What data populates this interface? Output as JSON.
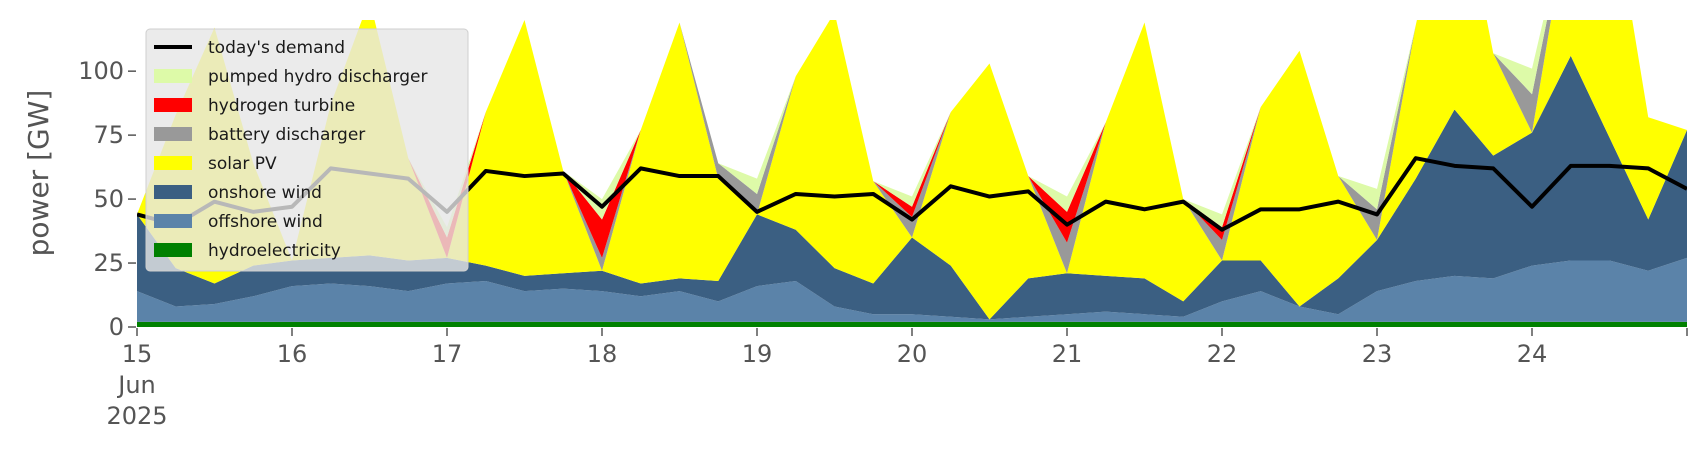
{
  "chart_data": {
    "type": "area",
    "title": "",
    "ylabel": "power [GW]",
    "ylim": [
      0,
      120
    ],
    "yticks": [
      0,
      25,
      50,
      75,
      100
    ],
    "xlim": [
      0,
      10
    ],
    "xticks": [
      {
        "x": 0,
        "label": "15",
        "sub": [
          "Jun",
          "2025"
        ]
      },
      {
        "x": 1,
        "label": "16"
      },
      {
        "x": 2,
        "label": "17"
      },
      {
        "x": 3,
        "label": "18"
      },
      {
        "x": 4,
        "label": "19"
      },
      {
        "x": 5,
        "label": "20"
      },
      {
        "x": 6,
        "label": "21"
      },
      {
        "x": 7,
        "label": "22"
      },
      {
        "x": 8,
        "label": "23"
      },
      {
        "x": 9,
        "label": "24"
      },
      {
        "x": 10,
        "label": ""
      }
    ],
    "grid": false,
    "legend_position": "top-left",
    "stack_order": [
      "hydroelectricity",
      "offshore wind",
      "onshore wind",
      "solar PV",
      "battery discharger",
      "hydrogen turbine",
      "pumped hydro discharger"
    ],
    "x": [
      0.0,
      0.25,
      0.5,
      0.75,
      1.0,
      1.25,
      1.5,
      1.75,
      2.0,
      2.25,
      2.5,
      2.75,
      3.0,
      3.25,
      3.5,
      3.75,
      4.0,
      4.25,
      4.5,
      4.75,
      5.0,
      5.25,
      5.5,
      5.75,
      6.0,
      6.25,
      6.5,
      6.75,
      7.0,
      7.25,
      7.5,
      7.75,
      8.0,
      8.25,
      8.5,
      8.75,
      9.0,
      9.25,
      9.5,
      9.75,
      10.0
    ],
    "series": [
      {
        "name": "hydroelectricity",
        "color": "#008000",
        "values": [
          2,
          2,
          2,
          2,
          2,
          2,
          2,
          2,
          2,
          2,
          2,
          2,
          2,
          2,
          2,
          2,
          2,
          2,
          2,
          2,
          2,
          2,
          2,
          2,
          2,
          2,
          2,
          2,
          2,
          2,
          2,
          2,
          2,
          2,
          2,
          2,
          2,
          2,
          2,
          2,
          2
        ]
      },
      {
        "name": "offshore wind",
        "color": "#5b83a9",
        "values": [
          12,
          6,
          7,
          10,
          14,
          15,
          14,
          12,
          15,
          16,
          12,
          13,
          12,
          10,
          12,
          8,
          14,
          16,
          6,
          3,
          3,
          2,
          1,
          2,
          3,
          4,
          3,
          2,
          8,
          12,
          6,
          3,
          12,
          16,
          18,
          17,
          22,
          24,
          24,
          20,
          25
        ]
      },
      {
        "name": "onshore wind",
        "color": "#3b5f82",
        "values": [
          30,
          15,
          8,
          12,
          10,
          10,
          12,
          12,
          10,
          6,
          6,
          6,
          8,
          5,
          5,
          8,
          28,
          20,
          15,
          12,
          30,
          20,
          0,
          15,
          16,
          14,
          14,
          6,
          16,
          12,
          0,
          14,
          20,
          40,
          65,
          48,
          52,
          80,
          48,
          20,
          50
        ]
      },
      {
        "name": "solar PV",
        "color": "#ffff00",
        "values": [
          0,
          60,
          100,
          40,
          0,
          60,
          100,
          40,
          0,
          60,
          100,
          40,
          0,
          60,
          100,
          40,
          0,
          60,
          100,
          40,
          0,
          60,
          100,
          40,
          0,
          60,
          100,
          40,
          0,
          60,
          100,
          40,
          0,
          60,
          100,
          40,
          0,
          60,
          100,
          40,
          0
        ]
      },
      {
        "name": "battery discharger",
        "color": "#999999",
        "values": [
          0,
          0,
          0,
          0,
          0,
          0,
          0,
          0,
          0,
          0,
          0,
          0,
          5,
          0,
          0,
          6,
          8,
          0,
          0,
          0,
          8,
          0,
          0,
          0,
          12,
          0,
          0,
          0,
          8,
          0,
          0,
          0,
          12,
          0,
          0,
          0,
          15,
          0,
          0,
          0,
          0
        ]
      },
      {
        "name": "hydrogen turbine",
        "color": "#ff0000",
        "values": [
          0,
          0,
          0,
          0,
          0,
          0,
          0,
          0,
          8,
          0,
          0,
          0,
          15,
          0,
          0,
          0,
          0,
          0,
          0,
          0,
          4,
          0,
          0,
          0,
          12,
          0,
          0,
          0,
          5,
          0,
          0,
          0,
          0,
          0,
          0,
          0,
          0,
          0,
          0,
          0,
          0
        ]
      },
      {
        "name": "pumped hydro discharger",
        "color": "#ddfaa8",
        "values": [
          0,
          0,
          0,
          0,
          0,
          0,
          0,
          0,
          4,
          0,
          0,
          0,
          8,
          0,
          0,
          0,
          6,
          0,
          0,
          0,
          4,
          0,
          0,
          0,
          6,
          0,
          0,
          0,
          5,
          0,
          0,
          0,
          8,
          0,
          0,
          0,
          10,
          0,
          0,
          0,
          0
        ]
      }
    ],
    "demand": {
      "name": "today's demand",
      "color": "#000000",
      "values": [
        44,
        40,
        49,
        45,
        47,
        62,
        60,
        58,
        45,
        61,
        59,
        60,
        47,
        62,
        59,
        59,
        45,
        52,
        51,
        52,
        42,
        55,
        51,
        53,
        40,
        49,
        46,
        49,
        38,
        46,
        46,
        49,
        44,
        66,
        63,
        62,
        47,
        63,
        63,
        62,
        54
      ]
    },
    "legend": [
      "today's demand",
      "pumped hydro discharger",
      "hydrogen turbine",
      "battery discharger",
      "solar PV",
      "onshore wind",
      "offshore wind",
      "hydroelectricity"
    ]
  }
}
